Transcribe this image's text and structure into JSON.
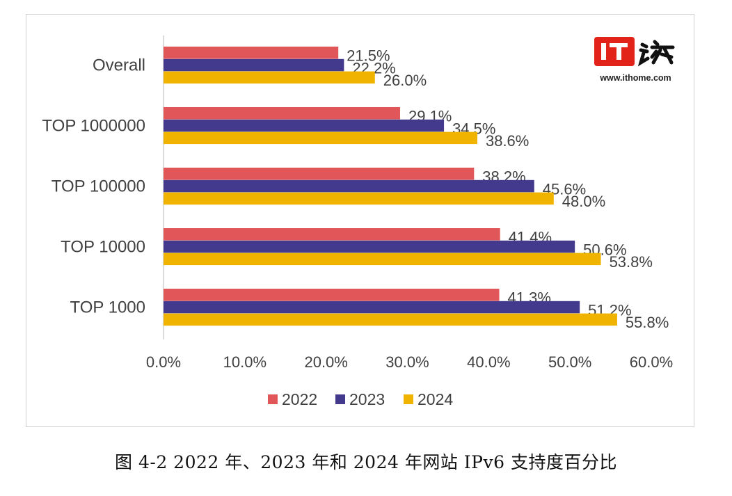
{
  "chart_data": {
    "type": "bar",
    "orientation": "horizontal",
    "categories": [
      "Overall",
      "TOP 1000000",
      "TOP 100000",
      "TOP 10000",
      "TOP 1000"
    ],
    "series": [
      {
        "name": "2022",
        "color": "#E15759",
        "values": [
          21.5,
          29.1,
          38.2,
          41.4,
          41.3
        ],
        "labels": [
          "21.5%",
          "29.1%",
          "38.2%",
          "41.4%",
          "41.3%"
        ]
      },
      {
        "name": "2023",
        "color": "#433A8E",
        "values": [
          22.2,
          34.5,
          45.6,
          50.6,
          51.2
        ],
        "labels": [
          "22.2%",
          "34.5%",
          "45.6%",
          "50.6%",
          "51.2%"
        ]
      },
      {
        "name": "2024",
        "color": "#F0B400",
        "values": [
          26.0,
          38.6,
          48.0,
          53.8,
          55.8
        ],
        "labels": [
          "26.0%",
          "38.6%",
          "48.0%",
          "53.8%",
          "55.8%"
        ]
      }
    ],
    "xlim": [
      0,
      60
    ],
    "x_ticks": [
      "0.0%",
      "10.0%",
      "20.0%",
      "30.0%",
      "40.0%",
      "50.0%",
      "60.0%"
    ],
    "grid": false,
    "legend_position": "bottom"
  },
  "watermark": {
    "logo_text": "IT之家",
    "site": "www.ithome.com"
  },
  "caption": "图 4-2 2022 年、2023 年和 2024 年网站 IPv6 支持度百分比"
}
